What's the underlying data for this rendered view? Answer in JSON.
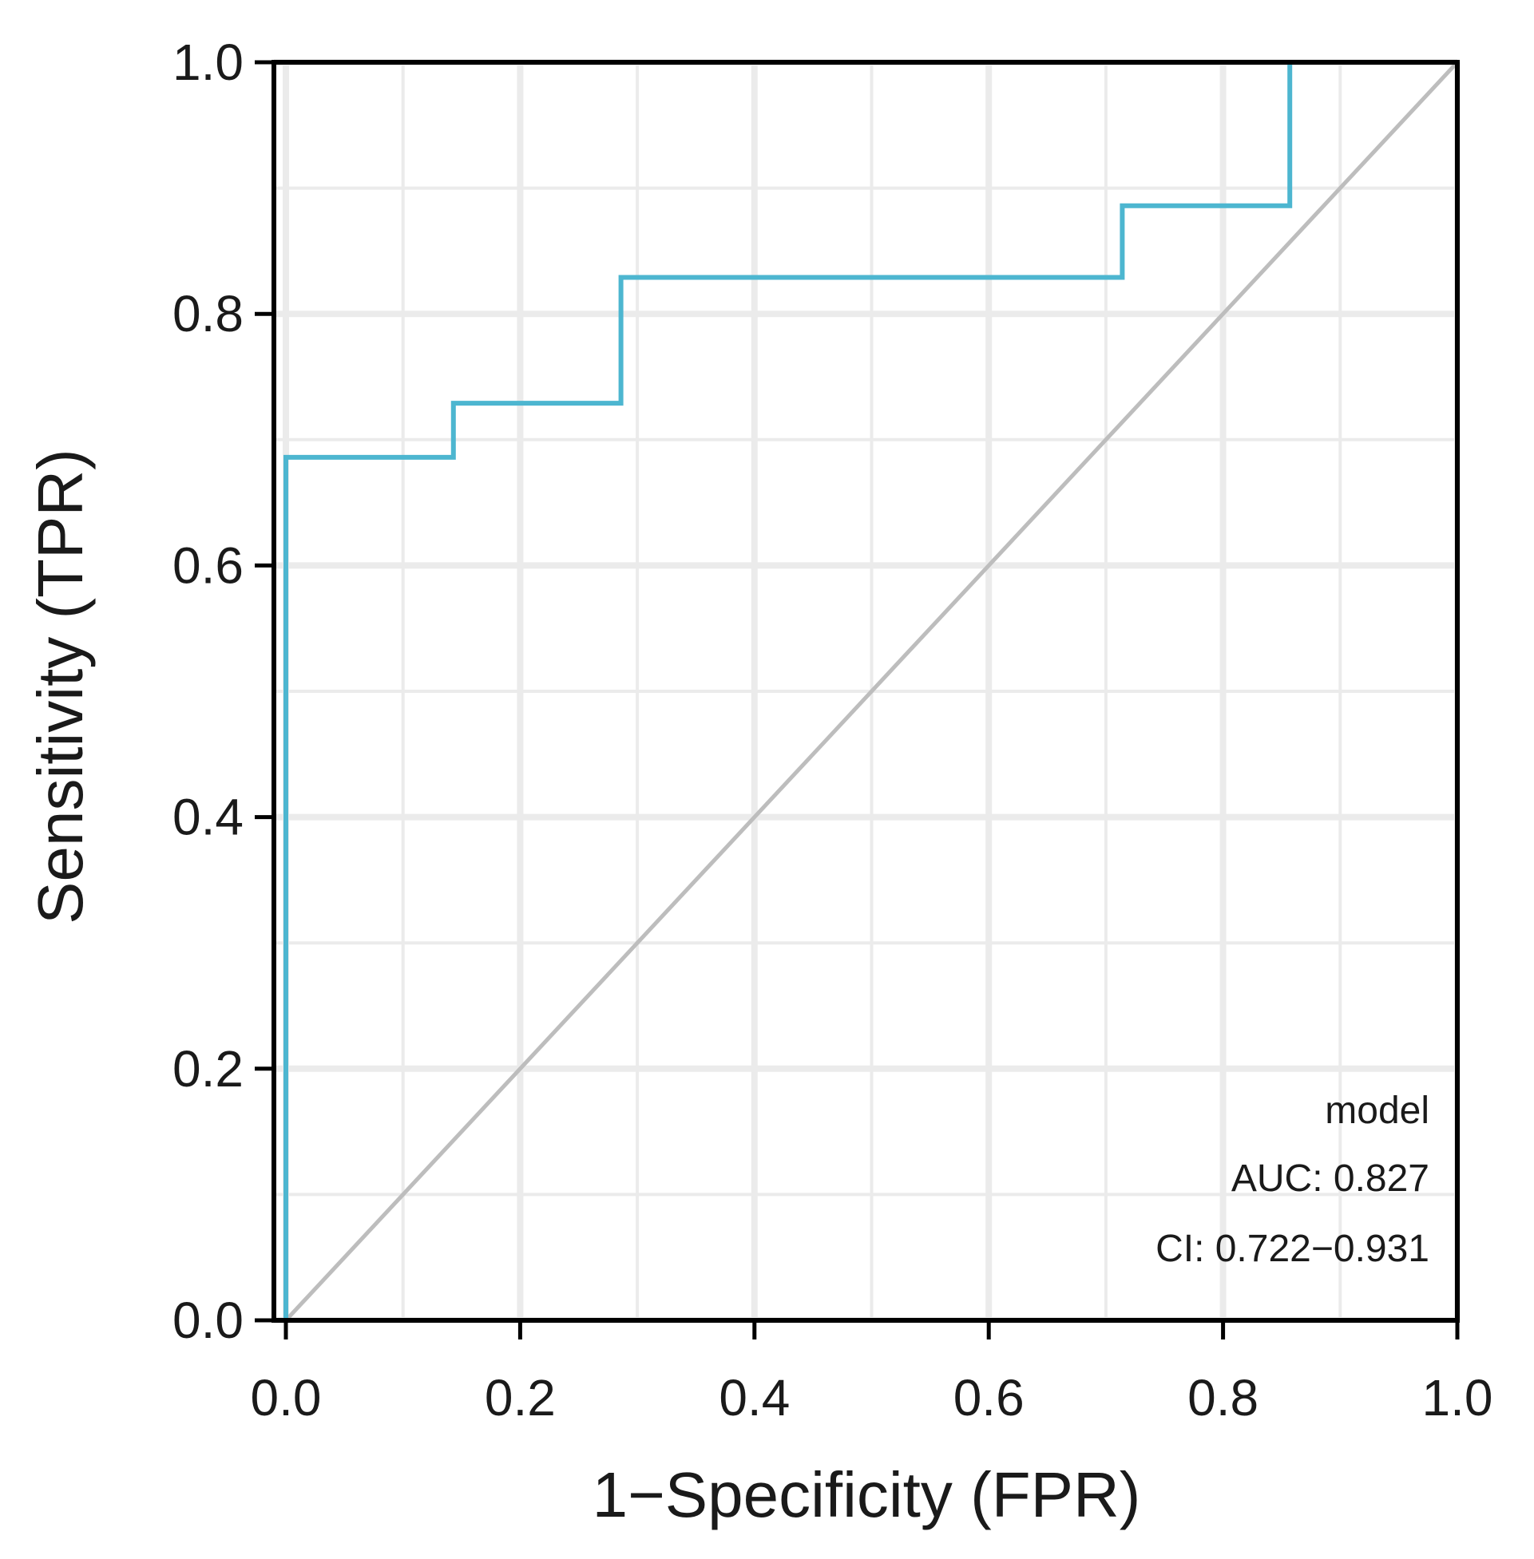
{
  "chart_data": {
    "type": "line",
    "title": "",
    "xlabel": "1−Specificity (FPR)",
    "ylabel": "Sensitivity (TPR)",
    "xlim": [
      0,
      1
    ],
    "ylim": [
      0,
      1
    ],
    "x_ticks": [
      "0.0",
      "0.2",
      "0.4",
      "0.6",
      "0.8",
      "1.0"
    ],
    "y_ticks": [
      "0.0",
      "0.2",
      "0.4",
      "0.6",
      "0.8",
      "1.0"
    ],
    "x_tick_values": [
      0,
      0.2,
      0.4,
      0.6,
      0.8,
      1.0
    ],
    "y_tick_values": [
      0,
      0.2,
      0.4,
      0.6,
      0.8,
      1.0
    ],
    "grid": true,
    "series": [
      {
        "name": "model",
        "color": "#4db6d0",
        "points": [
          [
            0.0,
            0.0
          ],
          [
            0.0,
            0.686
          ],
          [
            0.143,
            0.686
          ],
          [
            0.143,
            0.729
          ],
          [
            0.286,
            0.729
          ],
          [
            0.286,
            0.829
          ],
          [
            0.714,
            0.829
          ],
          [
            0.714,
            0.886
          ],
          [
            0.857,
            0.886
          ],
          [
            0.857,
            1.0
          ],
          [
            1.0,
            1.0
          ]
        ]
      }
    ],
    "reference_line": {
      "color": "#bdbdbd",
      "points": [
        [
          0,
          0
        ],
        [
          1,
          1
        ]
      ]
    },
    "legend_placement": "bottom-right",
    "annotations": {
      "model_label": "model",
      "auc_label": "AUC: 0.827",
      "ci_label": "CI: 0.722−0.931"
    },
    "colors": {
      "grid": "#ebebeb",
      "axis": "#000000"
    }
  }
}
